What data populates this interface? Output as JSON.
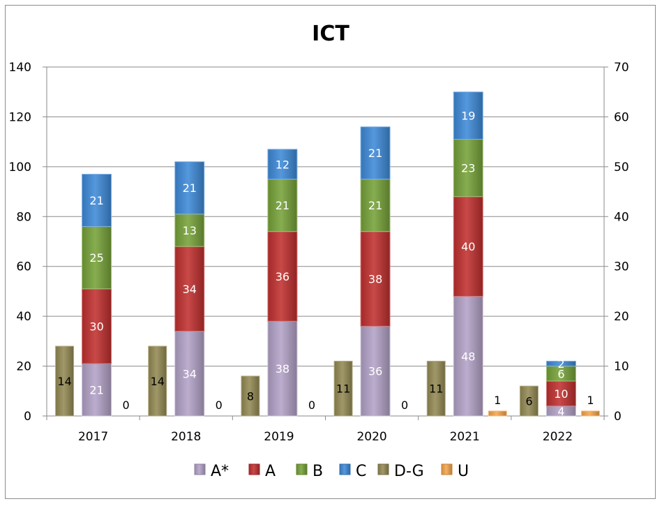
{
  "chart_data": {
    "type": "bar",
    "title": "ICT",
    "categories": [
      "2017",
      "2018",
      "2019",
      "2020",
      "2021",
      "2022"
    ],
    "stacked_series": [
      {
        "name": "A*",
        "color": "#b3a2c7",
        "values": [
          21,
          34,
          38,
          36,
          48,
          4
        ]
      },
      {
        "name": "A",
        "color": "#c0302f",
        "values": [
          30,
          34,
          36,
          38,
          40,
          10
        ]
      },
      {
        "name": "B",
        "color": "#77a239",
        "values": [
          25,
          13,
          21,
          21,
          23,
          6
        ]
      },
      {
        "name": "C",
        "color": "#3e8ad8",
        "values": [
          21,
          21,
          12,
          21,
          19,
          2
        ]
      }
    ],
    "secondary_series": [
      {
        "name": "D-G",
        "color": "#948a54",
        "values": [
          14,
          14,
          8,
          11,
          11,
          6
        ]
      },
      {
        "name": "U",
        "color": "#f6a54c",
        "values": [
          0,
          0,
          0,
          0,
          1,
          1
        ]
      }
    ],
    "y_left": {
      "min": 0,
      "max": 140,
      "ticks": [
        "0",
        "20",
        "40",
        "60",
        "80",
        "100",
        "120",
        "140"
      ]
    },
    "y_right": {
      "min": 0,
      "max": 70,
      "ticks": [
        "0",
        "10",
        "20",
        "30",
        "40",
        "50",
        "60",
        "70"
      ]
    },
    "legend": [
      "A*",
      "A",
      "B",
      "C",
      "D-G",
      "U"
    ],
    "legend_position": "bottom",
    "grid": true
  }
}
